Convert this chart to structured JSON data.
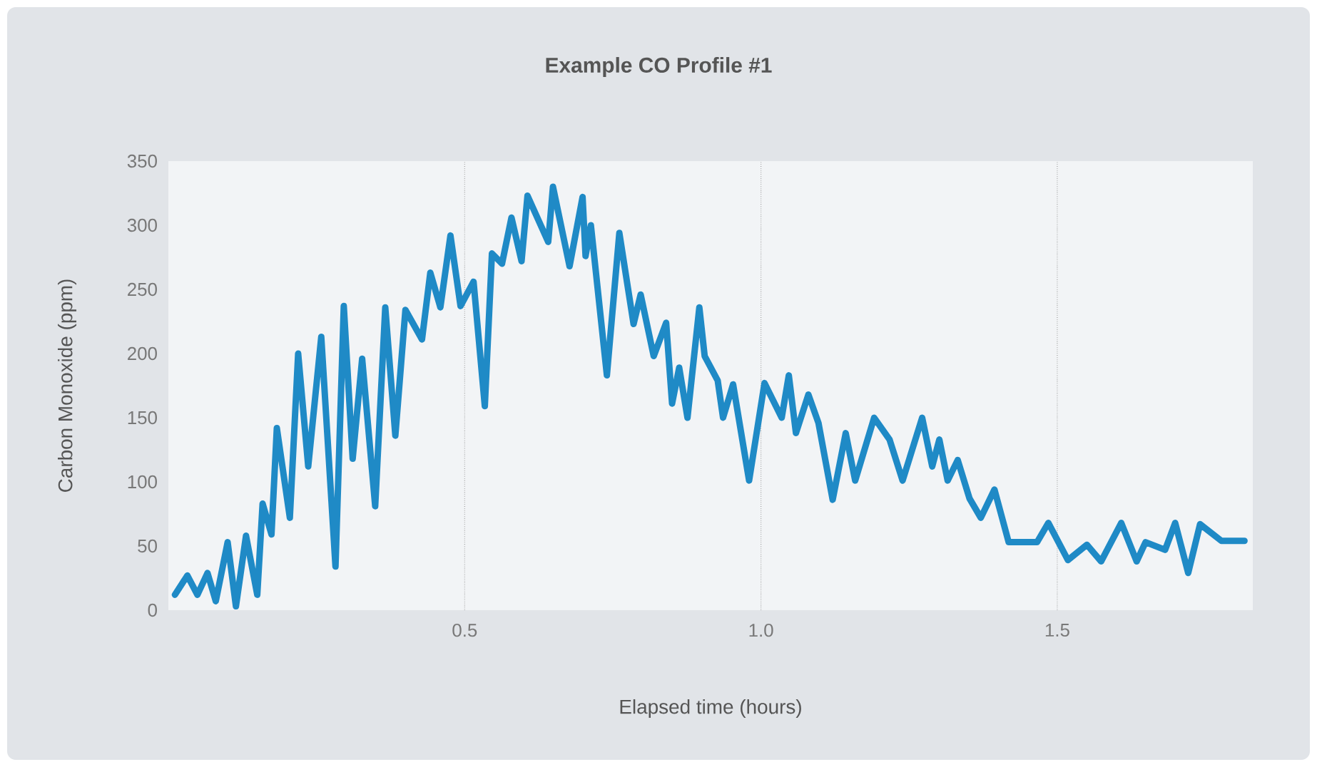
{
  "chart_data": {
    "type": "line",
    "title": "Example CO Profile #1",
    "xlabel": "Elapsed time (hours)",
    "ylabel": "Carbon Monoxide (ppm)",
    "x": [
      0.011,
      0.032,
      0.049,
      0.066,
      0.08,
      0.1,
      0.114,
      0.131,
      0.15,
      0.159,
      0.174,
      0.183,
      0.205,
      0.219,
      0.236,
      0.258,
      0.282,
      0.296,
      0.311,
      0.327,
      0.349,
      0.366,
      0.383,
      0.4,
      0.428,
      0.442,
      0.459,
      0.476,
      0.493,
      0.515,
      0.534,
      0.546,
      0.563,
      0.579,
      0.596,
      0.606,
      0.641,
      0.649,
      0.677,
      0.699,
      0.704,
      0.713,
      0.74,
      0.761,
      0.785,
      0.797,
      0.819,
      0.84,
      0.85,
      0.862,
      0.876,
      0.896,
      0.905,
      0.927,
      0.936,
      0.953,
      0.98,
      1.006,
      1.035,
      1.047,
      1.059,
      1.08,
      1.097,
      1.121,
      1.143,
      1.159,
      1.191,
      1.217,
      1.239,
      1.272,
      1.289,
      1.301,
      1.315,
      1.332,
      1.352,
      1.371,
      1.394,
      1.418,
      1.466,
      1.485,
      1.518,
      1.55,
      1.574,
      1.608,
      1.634,
      1.649,
      1.682,
      1.699,
      1.721,
      1.741,
      1.777,
      1.816
    ],
    "values": [
      12,
      27,
      12,
      29,
      7,
      53,
      3,
      58,
      12,
      83,
      59,
      142,
      72,
      200,
      112,
      213,
      34,
      237,
      118,
      196,
      81,
      236,
      136,
      234,
      211,
      263,
      236,
      292,
      237,
      256,
      159,
      278,
      270,
      306,
      272,
      323,
      287,
      330,
      268,
      322,
      276,
      300,
      183,
      294,
      223,
      246,
      198,
      224,
      161,
      189,
      150,
      236,
      198,
      179,
      150,
      176,
      101,
      177,
      150,
      183,
      138,
      168,
      146,
      86,
      138,
      101,
      150,
      133,
      101,
      150,
      112,
      133,
      101,
      117,
      87,
      72,
      94,
      53,
      53,
      68,
      39,
      51,
      38,
      68,
      38,
      53,
      47,
      68,
      29,
      67,
      54,
      54
    ],
    "color": "#1f8ac6",
    "xlim": [
      0,
      1.83
    ],
    "ylim": [
      0,
      350
    ],
    "xticks": [
      0.5,
      {
        "value": 1,
        "label": "1.0"
      },
      1.5
    ],
    "yticks": [
      0,
      50,
      100,
      150,
      200,
      250,
      300,
      350
    ],
    "grid": "x"
  }
}
